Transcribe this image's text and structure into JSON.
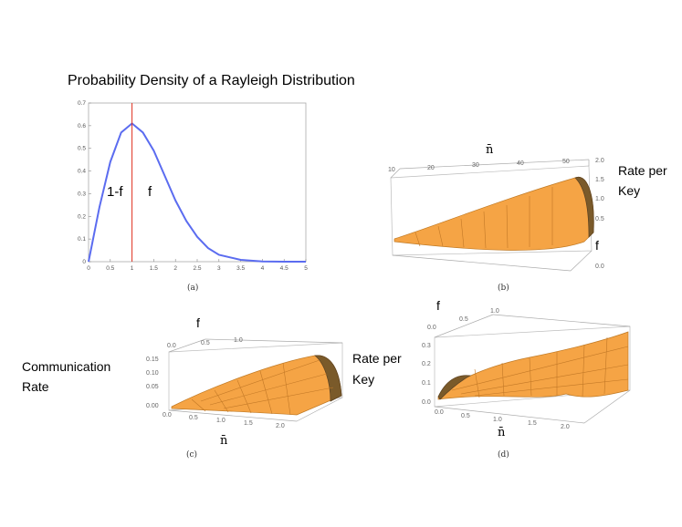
{
  "slide": {
    "title": "Probability Density of a Rayleigh Distribution",
    "labels": {
      "one_minus_f": "1-f",
      "f_in_plot": "f",
      "rate_per_key_b_1": "Rate per",
      "rate_per_key_b_2": "Key",
      "f_b": "f",
      "nbar_b": "n̄",
      "f_c": "f",
      "communication_rate_1": "Communication",
      "communication_rate_2": "Rate",
      "rate_per_key_c_1": "Rate per",
      "rate_per_key_c_2": "Key",
      "nbar_c": "n̄",
      "f_d": "f",
      "nbar_d": "n̄"
    },
    "captions": {
      "a": "(a)",
      "b": "(b)",
      "c": "(c)",
      "d": "(d)"
    }
  },
  "colors": {
    "curve": "#5b6cf0",
    "threshold_line": "#e03020",
    "surface": "#f5a445",
    "surface_dark": "#7a5a2a",
    "axis": "#999999"
  },
  "chart_data": [
    {
      "id": "a",
      "type": "line",
      "title": "",
      "xlabel": "",
      "ylabel": "",
      "xlim": [
        0,
        5
      ],
      "ylim": [
        0,
        0.7
      ],
      "xticks": [
        "0",
        "0.5",
        "1",
        "1.5",
        "2",
        "2.5",
        "3",
        "3.5",
        "4",
        "4.5",
        "5"
      ],
      "yticks": [
        "0",
        "0.1",
        "0.2",
        "0.3",
        "0.4",
        "0.5",
        "0.6",
        "0.7"
      ],
      "series": [
        {
          "x": [
            0,
            0.25,
            0.5,
            0.75,
            1.0,
            1.25,
            1.5,
            1.75,
            2.0,
            2.25,
            2.5,
            2.75,
            3.0,
            3.5,
            4.0,
            4.5,
            5.0
          ],
          "y": [
            0,
            0.24,
            0.44,
            0.57,
            0.61,
            0.57,
            0.49,
            0.38,
            0.27,
            0.18,
            0.11,
            0.06,
            0.03,
            0.008,
            0.001,
            0.0,
            0.0
          ]
        }
      ],
      "vline_x": 1
    },
    {
      "id": "b",
      "type": "surface",
      "x_ticks": [
        "10",
        "20",
        "30",
        "40",
        "50"
      ],
      "z_ticks": [
        "2.0",
        "1.5",
        "1.0",
        "0.5",
        "0.0"
      ]
    },
    {
      "id": "c",
      "type": "surface",
      "f_ticks": [
        "0.0",
        "0.5",
        "1.0"
      ],
      "z_ticks": [
        "0.15",
        "0.10",
        "0.05",
        "0.00"
      ],
      "nbar_ticks": [
        "0.0",
        "0.5",
        "1.0",
        "1.5",
        "2.0"
      ]
    },
    {
      "id": "d",
      "type": "surface",
      "f_ticks": [
        "0.0",
        "0.5",
        "1.0"
      ],
      "z_ticks": [
        "0.3",
        "0.2",
        "0.1",
        "0.0"
      ],
      "nbar_ticks": [
        "0.0",
        "0.5",
        "1.0",
        "1.5",
        "2.0"
      ]
    }
  ]
}
